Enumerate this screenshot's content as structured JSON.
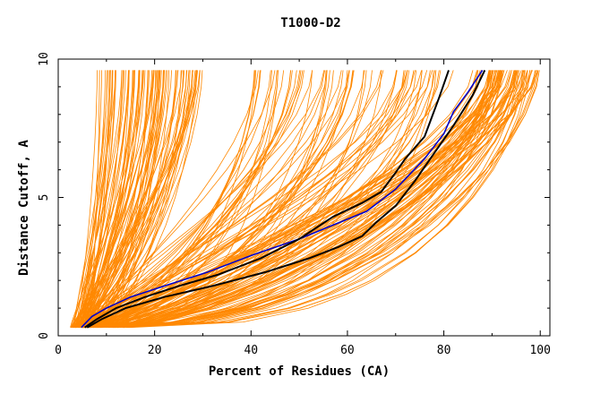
{
  "chart_data": {
    "type": "line",
    "title": "T1000-D2",
    "xlabel": "Percent of Residues (CA)",
    "ylabel": "Distance Cutoff, A",
    "xlim": [
      0,
      102
    ],
    "ylim": [
      0,
      10
    ],
    "x_ticks": [
      0,
      20,
      40,
      60,
      80,
      100
    ],
    "y_ticks": [
      0,
      5,
      10
    ],
    "x_tick_labels": [
      "0",
      "20",
      "40",
      "60",
      "80",
      "100"
    ],
    "y_tick_labels": [
      "0",
      "5",
      "10"
    ],
    "colors": {
      "background_models": "#ff8800",
      "highlight_blue": "#0000cc",
      "highlight_black": "#000000"
    },
    "background_curve_family": {
      "description_count": 240,
      "y": [
        0.3,
        0.5,
        1,
        1.5,
        2,
        3,
        4,
        5,
        6,
        7,
        8,
        9,
        9.6
      ],
      "groups": [
        {
          "name": "steep",
          "count": 90,
          "x_at_y_min": [
            2.5,
            6
          ],
          "x_at_y_max": [
            8,
            30
          ]
        },
        {
          "name": "middle",
          "count": 70,
          "x_at_y_min": [
            3,
            8
          ],
          "x_at_y_max": [
            40,
            82
          ]
        },
        {
          "name": "gradual",
          "count": 80,
          "x_at_y_min": [
            5,
            15
          ],
          "x_at_y_max": [
            86,
            100
          ]
        }
      ]
    },
    "series": [
      {
        "name": "blue",
        "color": "#0000cc",
        "x": [
          4.8,
          7,
          10,
          15,
          22,
          31,
          40,
          50,
          57,
          64,
          70,
          76,
          80,
          82,
          85,
          88
        ],
        "y": [
          0.3,
          0.7,
          1.0,
          1.4,
          1.8,
          2.3,
          2.9,
          3.5,
          4.0,
          4.5,
          5.3,
          6.4,
          7.3,
          8.1,
          8.8,
          9.6
        ]
      },
      {
        "name": "black-1",
        "color": "#000000",
        "x": [
          5.5,
          8,
          12,
          18,
          25,
          33,
          42,
          50,
          57,
          63,
          67,
          70,
          72,
          76,
          79,
          81
        ],
        "y": [
          0.3,
          0.6,
          1.0,
          1.4,
          1.8,
          2.2,
          2.8,
          3.5,
          4.3,
          4.8,
          5.2,
          5.9,
          6.4,
          7.2,
          8.6,
          9.6
        ]
      },
      {
        "name": "black-2",
        "color": "#000000",
        "x": [
          6,
          9,
          14,
          22,
          32,
          43,
          52,
          58,
          63,
          66,
          70,
          74,
          78,
          82,
          86,
          88.5
        ],
        "y": [
          0.3,
          0.6,
          1.0,
          1.4,
          1.8,
          2.3,
          2.8,
          3.2,
          3.6,
          4.1,
          4.7,
          5.6,
          6.6,
          7.6,
          8.7,
          9.6
        ]
      }
    ]
  }
}
